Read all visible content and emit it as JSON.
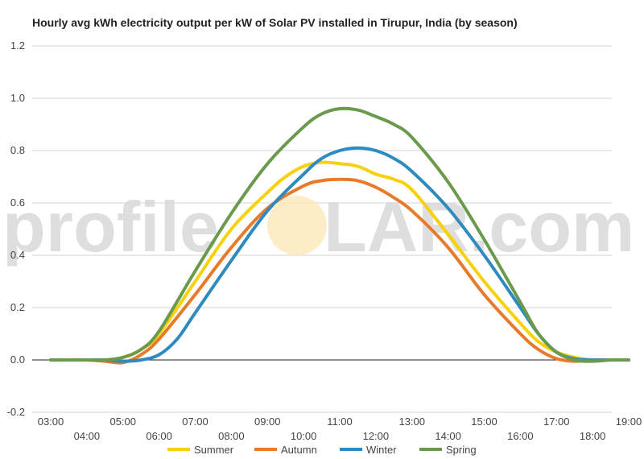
{
  "chart_data": {
    "type": "line",
    "title": "Hourly avg kWh electricity output per kW of Solar PV installed in Tirupur, India (by season)",
    "xlabel": "",
    "ylabel": "",
    "x_ticks": [
      "03:00",
      "04:00",
      "05:00",
      "06:00",
      "07:00",
      "08:00",
      "09:00",
      "10:00",
      "11:00",
      "12:00",
      "13:00",
      "14:00",
      "15:00",
      "16:00",
      "17:00",
      "18:00",
      "19:00"
    ],
    "y_ticks": [
      -0.2,
      0.0,
      0.2,
      0.4,
      0.6,
      0.8,
      1.0,
      1.2
    ],
    "ylim": [
      -0.2,
      1.2
    ],
    "xlim": [
      3,
      19
    ],
    "grid": true,
    "legend_position": "bottom",
    "series": [
      {
        "name": "Summer",
        "color": "#f7d10b",
        "x": [
          3,
          4,
          4.5,
          5,
          5.5,
          6,
          7,
          8,
          9,
          9.5,
          10,
          10.5,
          11,
          11.5,
          12,
          12.5,
          13,
          14,
          15,
          16,
          16.5,
          17,
          17.5,
          18,
          18.5,
          19
        ],
        "y": [
          0.0,
          0.0,
          0.0,
          0.01,
          0.04,
          0.1,
          0.3,
          0.5,
          0.64,
          0.7,
          0.74,
          0.755,
          0.75,
          0.74,
          0.71,
          0.69,
          0.65,
          0.48,
          0.3,
          0.14,
          0.07,
          0.03,
          0.01,
          0.0,
          0.0,
          0.0
        ]
      },
      {
        "name": "Autumn",
        "color": "#e87a2a",
        "x": [
          3,
          4,
          4.5,
          5,
          5.5,
          6,
          7,
          8,
          9,
          10,
          10.5,
          11,
          11.5,
          12,
          12.5,
          13,
          14,
          15,
          16,
          16.5,
          17,
          17.5,
          18,
          18.5,
          19
        ],
        "y": [
          0.0,
          0.0,
          -0.005,
          -0.01,
          0.02,
          0.08,
          0.25,
          0.43,
          0.58,
          0.665,
          0.685,
          0.69,
          0.685,
          0.66,
          0.62,
          0.57,
          0.43,
          0.25,
          0.1,
          0.04,
          0.005,
          -0.005,
          0.0,
          0.0,
          0.0
        ]
      },
      {
        "name": "Winter",
        "color": "#2d8bbf",
        "x": [
          3,
          4,
          4.5,
          5,
          5.5,
          6,
          6.5,
          7,
          8,
          9,
          10,
          10.5,
          11,
          11.5,
          12,
          12.5,
          13,
          14,
          15,
          16,
          16.5,
          17,
          17.5,
          18,
          18.5,
          19
        ],
        "y": [
          0.0,
          0.0,
          0.0,
          -0.005,
          0.0,
          0.02,
          0.08,
          0.18,
          0.38,
          0.57,
          0.71,
          0.77,
          0.8,
          0.81,
          0.8,
          0.77,
          0.72,
          0.58,
          0.4,
          0.2,
          0.1,
          0.03,
          0.005,
          0.0,
          0.0,
          0.0
        ]
      },
      {
        "name": "Spring",
        "color": "#6b9a4c",
        "x": [
          3,
          4,
          4.5,
          5,
          5.5,
          6,
          7,
          8,
          9,
          10,
          10.5,
          11,
          11.5,
          12,
          12.5,
          13,
          14,
          15,
          16,
          16.5,
          17,
          17.5,
          18,
          18.5,
          19
        ],
        "y": [
          0.0,
          0.0,
          0.0,
          0.01,
          0.04,
          0.11,
          0.34,
          0.56,
          0.75,
          0.89,
          0.94,
          0.96,
          0.955,
          0.93,
          0.9,
          0.85,
          0.68,
          0.46,
          0.22,
          0.1,
          0.03,
          0.0,
          -0.005,
          0.0,
          0.0
        ]
      }
    ]
  },
  "watermark": {
    "left_text": "profile",
    "right_text": "LAR.com",
    "sun_color": "#fde9b8"
  }
}
